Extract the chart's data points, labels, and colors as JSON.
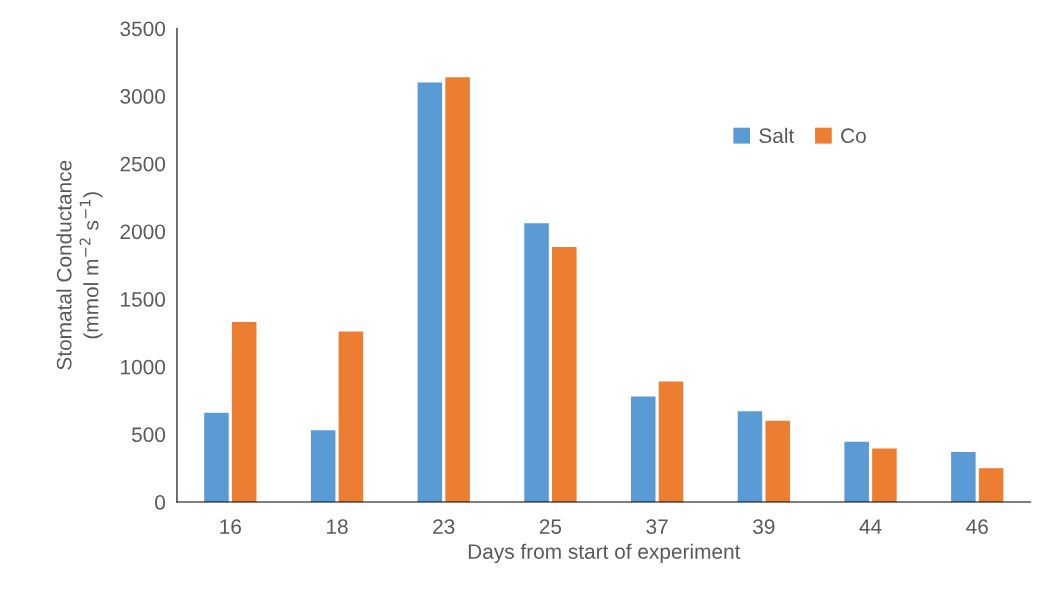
{
  "chart_data": {
    "type": "bar",
    "xlabel": "Days from start of experiment",
    "ylabel": "Stomatal Conductance\n(mmol m$^{−2}$ s$^{−1}$)",
    "categories": [
      "16",
      "18",
      "23",
      "25",
      "37",
      "39",
      "44",
      "46"
    ],
    "series": [
      {
        "name": "Salt",
        "color": "#5b9bd5",
        "values": [
          660,
          530,
          3100,
          2060,
          780,
          670,
          445,
          370
        ]
      },
      {
        "name": "Co",
        "color": "#ed7d31",
        "values": [
          1330,
          1260,
          3140,
          1885,
          890,
          600,
          395,
          250
        ]
      }
    ],
    "ylim": [
      0,
      3500
    ],
    "yticks": [
      0,
      500,
      1000,
      1500,
      2000,
      2500,
      3000,
      3500
    ],
    "grid": false,
    "legend": "top right"
  }
}
